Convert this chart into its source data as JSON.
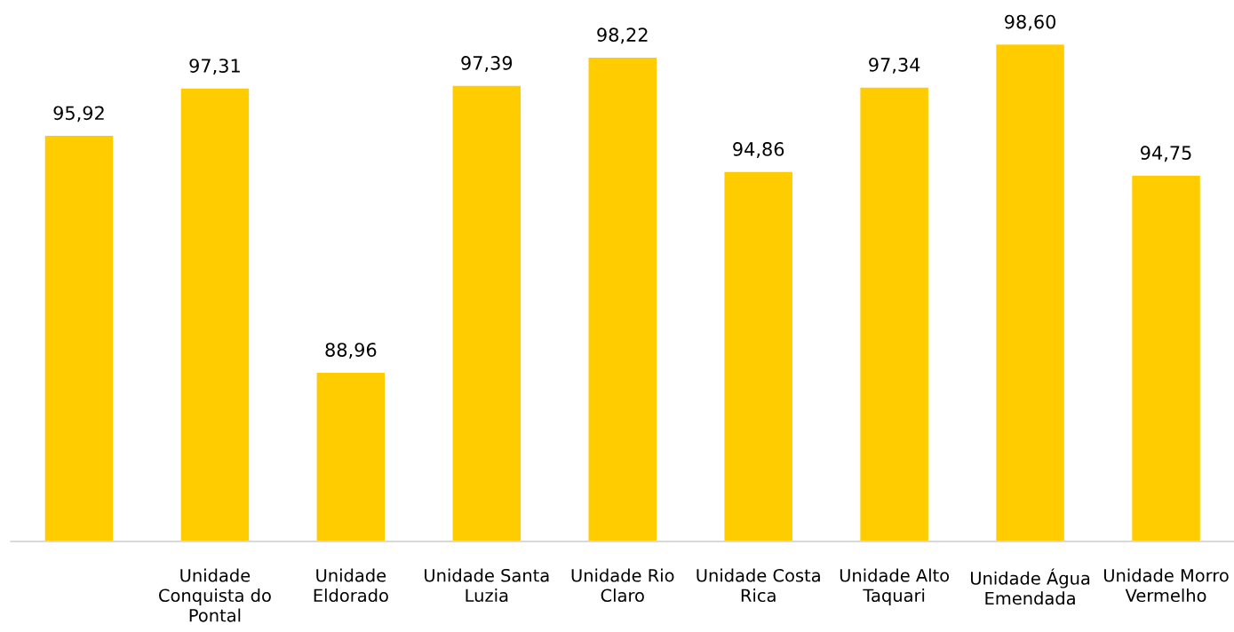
{
  "chart_data": {
    "type": "bar",
    "categories": [
      null,
      "Unidade Conquista do Pontal",
      "Unidade Eldorado",
      "Unidade Santa Luzia",
      "Unidade Rio Claro",
      "Unidade Costa Rica",
      "Unidade Alto Taquari",
      "Unidade Água Emendada",
      "Unidade Morro Vermelho"
    ],
    "values": [
      95.92,
      97.31,
      88.96,
      97.39,
      98.22,
      94.86,
      97.34,
      98.6,
      94.75
    ],
    "value_labels": [
      "95,92",
      "97,31",
      "88,96",
      "97,39",
      "98,22",
      "94,86",
      "97,34",
      "98,60",
      "94,75"
    ],
    "color": "#ffcc00",
    "tick_labels": "x"
  }
}
